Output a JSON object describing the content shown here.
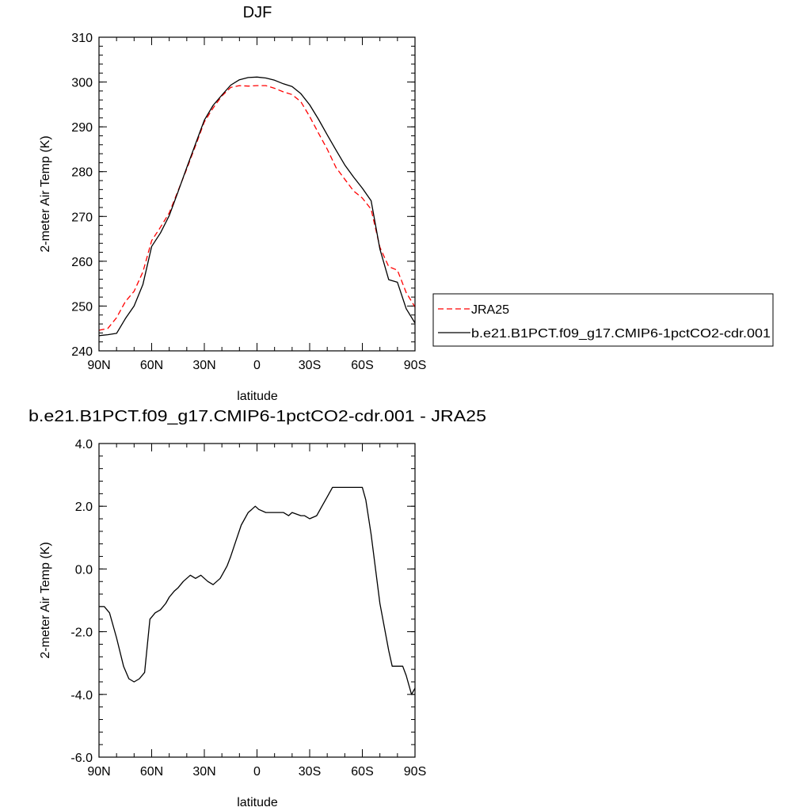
{
  "chart_data": [
    {
      "type": "line",
      "title": "DJF",
      "xlabel": "latitude",
      "ylabel": "2-meter Air Temp (K)",
      "xlim": [
        90,
        -90
      ],
      "ylim": [
        240,
        310
      ],
      "x_ticks": [
        90,
        60,
        30,
        0,
        -30,
        -60,
        -90
      ],
      "x_tick_labels": [
        "90N",
        "60N",
        "30N",
        "0",
        "30S",
        "60S",
        "90S"
      ],
      "y_ticks": [
        240,
        250,
        260,
        270,
        280,
        290,
        300,
        310
      ],
      "y_tick_labels": [
        "240",
        "250",
        "260",
        "270",
        "280",
        "290",
        "300",
        "310"
      ],
      "legend_position": "right",
      "series": [
        {
          "name": "JRA25",
          "color": "#ff0000",
          "dash": "dashed",
          "x": [
            90,
            85,
            80,
            75,
            70,
            65,
            60,
            55,
            50,
            45,
            40,
            35,
            30,
            25,
            20,
            15,
            10,
            5,
            0,
            -5,
            -10,
            -15,
            -20,
            -25,
            -30,
            -35,
            -40,
            -45,
            -50,
            -55,
            -60,
            -65,
            -70,
            -75,
            -80,
            -85,
            -90
          ],
          "values": [
            244.6,
            245.0,
            247.4,
            251.0,
            253.3,
            257.6,
            264.6,
            267.6,
            270.8,
            275.7,
            280.6,
            285.8,
            291.1,
            294.2,
            296.9,
            298.8,
            299.2,
            299.1,
            299.2,
            299.2,
            298.6,
            297.8,
            297.2,
            295.6,
            292.3,
            288.6,
            285.0,
            280.9,
            278.3,
            275.7,
            274.1,
            271.6,
            263.1,
            258.8,
            258.0,
            253.0,
            249.8
          ]
        },
        {
          "name": "b.e21.B1PCT.f09_g17.CMIP6-1pctCO2-cdr.001",
          "color": "#000000",
          "dash": "solid",
          "x": [
            90,
            85,
            80,
            75,
            70,
            65,
            60,
            55,
            50,
            45,
            40,
            35,
            30,
            25,
            20,
            15,
            10,
            5,
            0,
            -5,
            -10,
            -15,
            -20,
            -25,
            -30,
            -35,
            -40,
            -45,
            -50,
            -55,
            -60,
            -65,
            -70,
            -75,
            -80,
            -85,
            -90
          ],
          "values": [
            243.4,
            243.6,
            243.9,
            247.2,
            250.0,
            254.8,
            263.3,
            266.3,
            270.2,
            275.5,
            280.9,
            286.2,
            291.5,
            294.8,
            297.1,
            299.3,
            300.5,
            301.0,
            301.1,
            300.9,
            300.4,
            299.6,
            299.0,
            297.4,
            294.9,
            291.7,
            288.2,
            284.8,
            281.5,
            278.8,
            276.3,
            273.5,
            262.7,
            255.9,
            255.3,
            249.4,
            246.2
          ]
        }
      ]
    },
    {
      "type": "line",
      "title": "b.e21.B1PCT.f09_g17.CMIP6-1pctCO2-cdr.001 - JRA25",
      "xlabel": "latitude",
      "ylabel": "2-meter Air Temp (K)",
      "xlim": [
        90,
        -90
      ],
      "ylim": [
        -6.0,
        4.0
      ],
      "x_ticks": [
        90,
        60,
        30,
        0,
        -30,
        -60,
        -90
      ],
      "x_tick_labels": [
        "90N",
        "60N",
        "30N",
        "0",
        "30S",
        "60S",
        "90S"
      ],
      "y_ticks": [
        -6,
        -4,
        -2,
        0,
        2,
        4
      ],
      "y_tick_labels": [
        "-6.0",
        "-4.0",
        "-2.0",
        "0.0",
        "2.0",
        "4.0"
      ],
      "series": [
        {
          "color": "#000000",
          "dash": "solid",
          "x": [
            90,
            87,
            84,
            80,
            76,
            73,
            70,
            67,
            64,
            61,
            58,
            55,
            52,
            50,
            47,
            45,
            42,
            38,
            35,
            32,
            28,
            25,
            21,
            19,
            17,
            15,
            12,
            9,
            5,
            3,
            1,
            -1,
            -5,
            -10,
            -15,
            -18,
            -20,
            -25,
            -27,
            -30,
            -34,
            -37,
            -40,
            -43,
            -46,
            -49,
            -52,
            -55,
            -58,
            -60,
            -62,
            -65,
            -70,
            -75,
            -77,
            -80,
            -83,
            -85,
            -88,
            -90
          ],
          "values": [
            -1.2,
            -1.2,
            -1.4,
            -2.2,
            -3.1,
            -3.5,
            -3.6,
            -3.5,
            -3.3,
            -1.6,
            -1.4,
            -1.3,
            -1.1,
            -0.9,
            -0.7,
            -0.6,
            -0.4,
            -0.2,
            -0.3,
            -0.2,
            -0.4,
            -0.5,
            -0.3,
            -0.1,
            0.1,
            0.4,
            0.9,
            1.4,
            1.8,
            1.9,
            2.0,
            1.9,
            1.8,
            1.8,
            1.8,
            1.7,
            1.8,
            1.7,
            1.7,
            1.6,
            1.7,
            2.0,
            2.3,
            2.6,
            2.6,
            2.6,
            2.6,
            2.6,
            2.6,
            2.6,
            2.2,
            1.1,
            -1.1,
            -2.6,
            -3.1,
            -3.1,
            -3.1,
            -3.4,
            -4.0,
            -3.8
          ]
        }
      ]
    }
  ]
}
